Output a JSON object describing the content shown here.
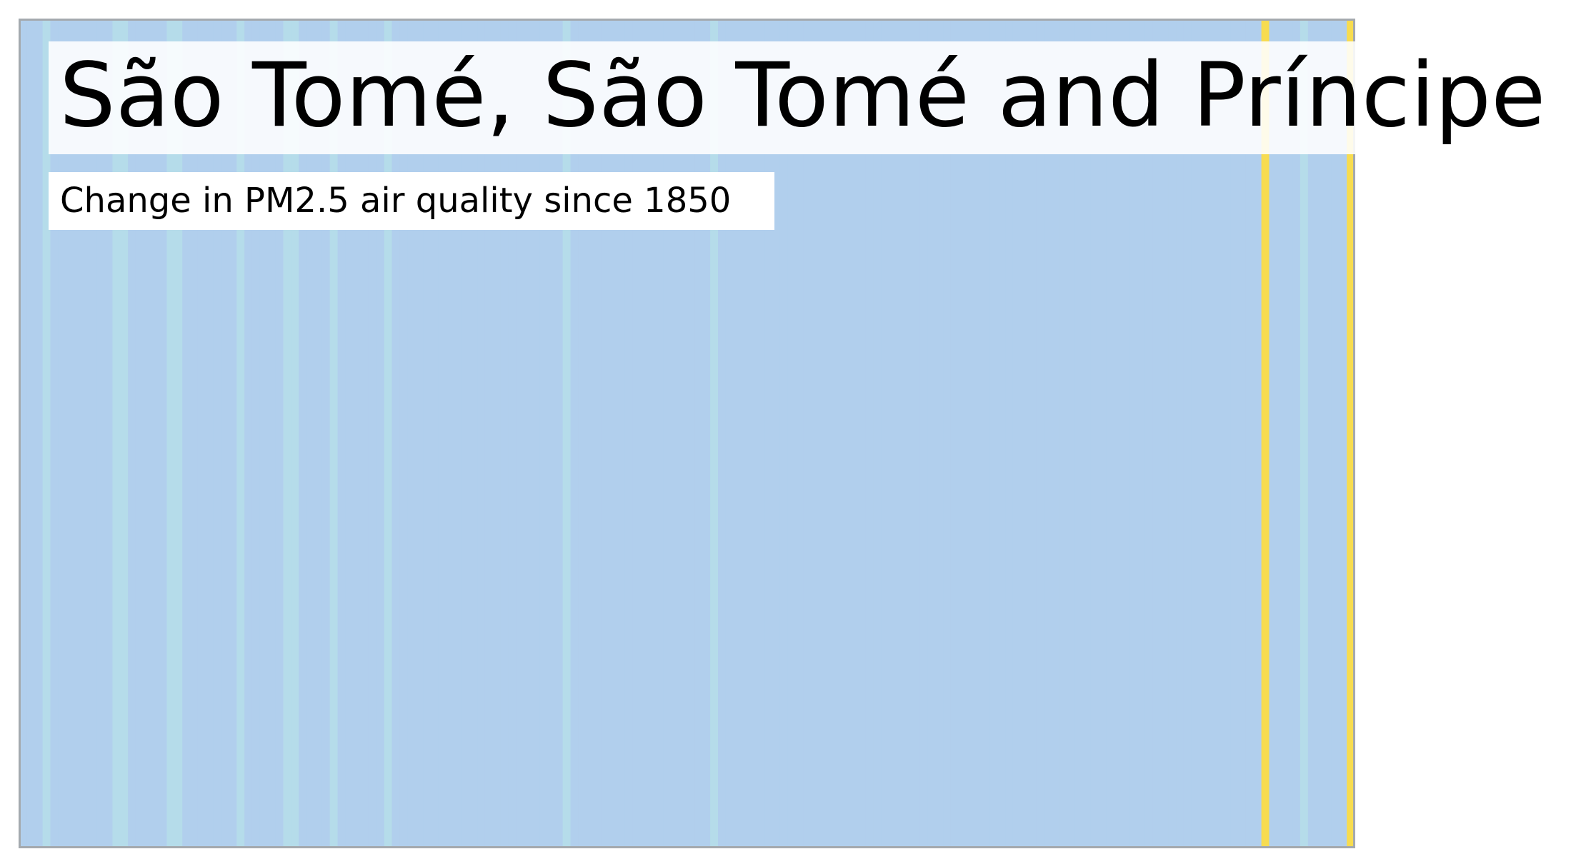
{
  "chart_data": {
    "type": "heatmap",
    "title": "São Tomé, São Tomé and Príncipe",
    "subtitle": "Change in PM2.5 air quality since 1850",
    "xlabel": "",
    "ylabel": "",
    "x_range": [
      1850,
      2021
    ],
    "grid": false,
    "legend": "none",
    "colors": {
      "base": "#b1cfed",
      "slight": "#b5dcea",
      "high": "#f7dc50",
      "frame": "#a4a9ae"
    },
    "years": [
      1850,
      1851,
      1852,
      1853,
      1854,
      1855,
      1856,
      1857,
      1858,
      1859,
      1860,
      1861,
      1862,
      1863,
      1864,
      1865,
      1866,
      1867,
      1868,
      1869,
      1870,
      1871,
      1872,
      1873,
      1874,
      1875,
      1876,
      1877,
      1878,
      1879,
      1880,
      1881,
      1882,
      1883,
      1884,
      1885,
      1886,
      1887,
      1888,
      1889,
      1890,
      1891,
      1892,
      1893,
      1894,
      1895,
      1896,
      1897,
      1898,
      1899,
      1900,
      1901,
      1902,
      1903,
      1904,
      1905,
      1906,
      1907,
      1908,
      1909,
      1910,
      1911,
      1912,
      1913,
      1914,
      1915,
      1916,
      1917,
      1918,
      1919,
      1920,
      1921,
      1922,
      1923,
      1924,
      1925,
      1926,
      1927,
      1928,
      1929,
      1930,
      1931,
      1932,
      1933,
      1934,
      1935,
      1936,
      1937,
      1938,
      1939,
      1940,
      1941,
      1942,
      1943,
      1944,
      1945,
      1946,
      1947,
      1948,
      1949,
      1950,
      1951,
      1952,
      1953,
      1954,
      1955,
      1956,
      1957,
      1958,
      1959,
      1960,
      1961,
      1962,
      1963,
      1964,
      1965,
      1966,
      1967,
      1968,
      1969,
      1970,
      1971,
      1972,
      1973,
      1974,
      1975,
      1976,
      1977,
      1978,
      1979,
      1980,
      1981,
      1982,
      1983,
      1984,
      1985,
      1986,
      1987,
      1988,
      1989,
      1990,
      1991,
      1992,
      1993,
      1994,
      1995,
      1996,
      1997,
      1998,
      1999,
      2000,
      2001,
      2002,
      2003,
      2004,
      2005,
      2006,
      2007,
      2008,
      2009,
      2010,
      2011,
      2012,
      2013,
      2014,
      2015,
      2016,
      2017,
      2018,
      2019,
      2020,
      2021
    ],
    "levels": [
      0,
      0,
      0,
      1,
      0,
      0,
      0,
      0,
      0,
      0,
      0,
      0,
      1,
      1,
      0,
      0,
      0,
      0,
      0,
      1,
      1,
      0,
      0,
      0,
      0,
      0,
      0,
      0,
      1,
      0,
      0,
      0,
      0,
      0,
      1,
      1,
      0,
      0,
      0,
      0,
      1,
      0,
      0,
      0,
      0,
      0,
      0,
      1,
      0,
      0,
      0,
      0,
      0,
      0,
      0,
      0,
      0,
      0,
      0,
      0,
      0,
      0,
      0,
      0,
      0,
      0,
      0,
      0,
      0,
      0,
      1,
      0,
      0,
      0,
      0,
      0,
      0,
      0,
      0,
      0,
      0,
      0,
      0,
      0,
      0,
      0,
      0,
      0,
      0,
      1,
      0,
      0,
      0,
      0,
      0,
      0,
      0,
      0,
      0,
      0,
      0,
      0,
      0,
      0,
      0,
      0,
      0,
      0,
      0,
      0,
      0,
      0,
      0,
      0,
      0,
      0,
      0,
      0,
      0,
      0,
      0,
      0,
      0,
      0,
      0,
      0,
      0,
      0,
      0,
      0,
      0,
      0,
      0,
      0,
      0,
      0,
      0,
      0,
      0,
      0,
      0,
      0,
      0,
      0,
      0,
      0,
      0,
      0,
      0,
      0,
      0,
      0,
      0,
      0,
      0,
      0,
      0,
      0,
      0,
      0,
      2,
      0,
      0,
      0,
      0,
      1,
      0,
      0,
      0,
      0,
      0,
      2
    ]
  }
}
